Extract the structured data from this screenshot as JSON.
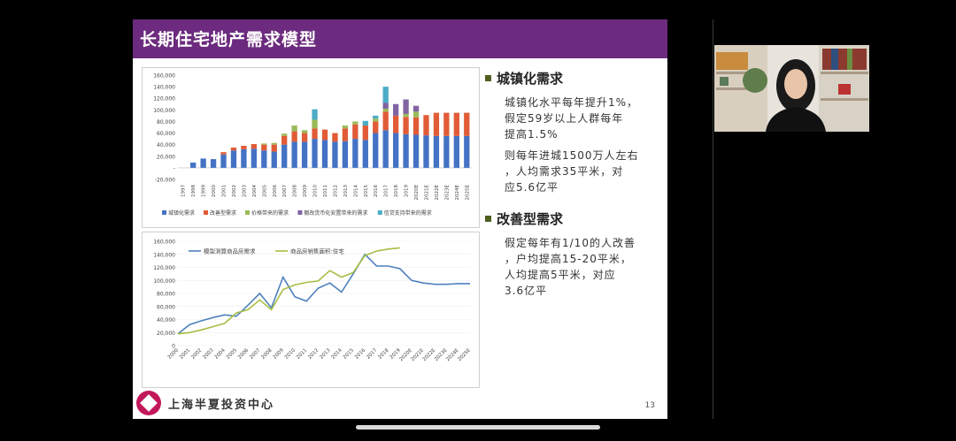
{
  "slide": {
    "title": "长期住宅地产需求模型",
    "page_number": "13",
    "footer_brand": "上海半夏投资中心",
    "right": {
      "section1_title": "城镇化需求",
      "section1_p1": "城镇化水平每年提升1%，\n假定59岁以上人群每年\n提高1.5%",
      "section1_p2": "则每年进城1500万人左右\n，人均需求35平米，对\n应5.6亿平",
      "section2_title": "改善型需求",
      "section2_p1": "假定每年有1/10的人改善\n，户均提高15-20平米，\n人均提高5平米，对应\n3.6亿平"
    },
    "colors": {
      "header": "#6c2b7e",
      "bullet": "#4f5f1e"
    }
  },
  "chart_data": [
    {
      "type": "bar",
      "stacked": true,
      "categories": [
        "1997",
        "1998",
        "1999",
        "2000",
        "2001",
        "2002",
        "2003",
        "2004",
        "2005",
        "2006",
        "2007",
        "2008",
        "2009",
        "2010",
        "2011",
        "2012",
        "2013",
        "2014",
        "2015",
        "2016",
        "2017",
        "2018",
        "2019",
        "2020E",
        "2021E",
        "2022E",
        "2023E",
        "2024E",
        "2025E"
      ],
      "series": [
        {
          "name": "城镇化需求",
          "color": "#4472c4",
          "values": [
            0,
            9000,
            16000,
            15000,
            23000,
            30000,
            32000,
            33000,
            30000,
            28000,
            40000,
            45000,
            45000,
            50000,
            48000,
            45000,
            46000,
            50000,
            48000,
            60000,
            65000,
            60000,
            58000,
            57000,
            56000,
            55000,
            55000,
            55000,
            55000
          ]
        },
        {
          "name": "改善型需求",
          "color": "#e15b37",
          "values": [
            0,
            0,
            0,
            0,
            4000,
            5000,
            6000,
            8000,
            10000,
            12000,
            15000,
            18000,
            15000,
            18000,
            18000,
            15000,
            22000,
            25000,
            25000,
            20000,
            32000,
            30000,
            30000,
            30000,
            35000,
            40000,
            40000,
            40000,
            40000
          ]
        },
        {
          "name": "价格带来的需求",
          "color": "#9bbb59",
          "values": [
            0,
            0,
            0,
            0,
            0,
            0,
            0,
            0,
            2000,
            3000,
            4000,
            10000,
            5000,
            15000,
            0,
            0,
            5000,
            5000,
            0,
            5000,
            5000,
            0,
            5000,
            10000,
            0,
            0,
            0,
            0,
            0
          ]
        },
        {
          "name": "棚改货币化安置带来的需求",
          "color": "#8064a2",
          "values": [
            0,
            0,
            0,
            0,
            0,
            0,
            0,
            0,
            0,
            0,
            0,
            0,
            0,
            0,
            0,
            0,
            0,
            0,
            0,
            0,
            10000,
            20000,
            25000,
            10000,
            0,
            0,
            0,
            0,
            0
          ]
        },
        {
          "name": "信贷支持带来的需求",
          "color": "#4bacc6",
          "values": [
            0,
            0,
            0,
            0,
            0,
            0,
            0,
            0,
            0,
            0,
            0,
            0,
            0,
            18000,
            0,
            0,
            0,
            0,
            8000,
            5000,
            28000,
            0,
            0,
            0,
            0,
            0,
            0,
            0,
            0
          ]
        }
      ],
      "y_ticks": [
        "160,000",
        "140,000",
        "120,000",
        "100,000",
        "80,000",
        "60,000",
        "40,000",
        "20,000",
        "-",
        "-20,000"
      ],
      "ylim": [
        -20000,
        160000
      ]
    },
    {
      "type": "line",
      "categories": [
        "2000",
        "2001",
        "2002",
        "2003",
        "2004",
        "2005",
        "2006",
        "2007",
        "2008",
        "2009",
        "2010",
        "2011",
        "2012",
        "2013",
        "2014",
        "2015",
        "2016",
        "2017",
        "2018",
        "2019",
        "2020E",
        "2021E",
        "2022E",
        "2023E",
        "2024E",
        "2025E"
      ],
      "series": [
        {
          "name": "模型测算商品房需求",
          "color": "#4f81bd",
          "values": [
            18000,
            32000,
            38000,
            43000,
            47000,
            45000,
            62000,
            80000,
            58000,
            105000,
            75000,
            68000,
            88000,
            96000,
            82000,
            110000,
            140000,
            122000,
            122000,
            118000,
            100000,
            96000,
            94000,
            94000,
            95000,
            95000
          ]
        },
        {
          "name": "商品房销售面积:住宅",
          "color": "#a6be45",
          "values": [
            18000,
            20000,
            24000,
            29000,
            34000,
            50000,
            55000,
            70000,
            55000,
            86000,
            93000,
            97000,
            99000,
            115000,
            105000,
            112000,
            138000,
            145000,
            148000,
            150000,
            null,
            null,
            null,
            null,
            null,
            null
          ]
        }
      ],
      "y_ticks": [
        "160,000",
        "140,000",
        "120,000",
        "100,000",
        "80,000",
        "60,000",
        "40,000",
        "20,000",
        "0"
      ],
      "ylim": [
        0,
        160000
      ]
    }
  ]
}
